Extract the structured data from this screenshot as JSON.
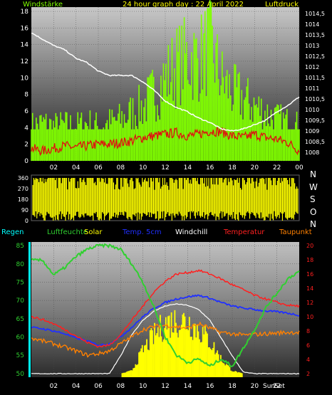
{
  "colors": {
    "wind": "#80ff00",
    "gust": "#7cd600",
    "pressure": "#ffffff",
    "winddir": "#ffff00",
    "regen": "#00ffff",
    "humidity": "#30d030",
    "solar": "#ffff00",
    "temp5cm": "#2030ff",
    "windchill": "#ffffff",
    "temperature": "#ff2020",
    "dewpoint": "#ff8000",
    "axis_text": "#ffffff",
    "red_axis": "#ff2020"
  },
  "header": {
    "left": "Windstärke",
    "center": "24 hour graph day : 22 April 2022",
    "right": "Luftdruck"
  },
  "dir_labels": [
    "N",
    "W",
    "S",
    "O",
    "N"
  ],
  "legend": {
    "regen": "Regen",
    "luftfeuchte": "Luftfeuchte",
    "solar": "Solar",
    "temp5cm": "Temp. 5cm",
    "windchill": "Windchill",
    "temperatur": "Temperatur",
    "taupunkt": "Taupunkt"
  },
  "sun_labels": {
    "rise": "Sun",
    "set": "Set"
  },
  "chart_data": [
    {
      "type": "line",
      "title": "24 hour graph day : 22 April 2022",
      "x_ticks": [
        "02",
        "04",
        "06",
        "08",
        "10",
        "12",
        "14",
        "16",
        "18",
        "20",
        "22",
        "00"
      ],
      "y_left_ticks": [
        "0",
        "2",
        "4",
        "6",
        "8",
        "10",
        "12",
        "14",
        "16",
        "18"
      ],
      "y_right_ticks": [
        "1008",
        "1008,5",
        "1009",
        "1009,5",
        "1010",
        "1010,5",
        "1011",
        "1011,5",
        "1012",
        "1012,5",
        "1013",
        "1013,5",
        "1014",
        "1014,5"
      ],
      "ylim_left": [
        0,
        18
      ],
      "ylim_right": [
        1007.6,
        1014.8
      ],
      "series": [
        {
          "name": "Windstärke",
          "axis": "left",
          "x": [
            0,
            1,
            2,
            3,
            4,
            5,
            6,
            7,
            8,
            9,
            10,
            11,
            12,
            13,
            14,
            15,
            16,
            17,
            18,
            19,
            20,
            21,
            22,
            23,
            24
          ],
          "values": [
            5,
            5.5,
            5,
            5.2,
            5,
            5.5,
            5,
            5.5,
            6,
            7,
            8,
            10,
            12,
            14,
            15,
            15,
            17,
            12,
            10,
            9,
            8,
            7,
            6,
            5.5,
            5
          ]
        },
        {
          "name": "Windstärke (Mittel)",
          "axis": "left",
          "x": [
            0,
            1,
            2,
            3,
            4,
            5,
            6,
            7,
            8,
            9,
            10,
            11,
            12,
            13,
            14,
            15,
            16,
            17,
            18,
            19,
            20,
            21,
            22,
            23,
            24
          ],
          "values": [
            1.5,
            1.2,
            1.5,
            1.8,
            1.6,
            1.8,
            2.0,
            2.0,
            2.2,
            2.4,
            2.8,
            3.0,
            3.2,
            3.4,
            3.0,
            3.2,
            3.6,
            3.5,
            3.0,
            2.8,
            3.2,
            2.8,
            2.6,
            2.2,
            1.2
          ]
        },
        {
          "name": "Luftdruck",
          "axis": "right",
          "x": [
            0,
            1,
            2,
            3,
            4,
            5,
            6,
            7,
            8,
            9,
            10,
            11,
            12,
            13,
            14,
            15,
            16,
            17,
            18,
            19,
            20,
            21,
            22,
            23,
            24
          ],
          "values": [
            1013.6,
            1013.3,
            1013.0,
            1012.8,
            1012.4,
            1012.2,
            1011.8,
            1011.6,
            1011.6,
            1011.6,
            1011.3,
            1010.9,
            1010.4,
            1010.1,
            1009.9,
            1009.6,
            1009.4,
            1009.1,
            1009.0,
            1009.1,
            1009.3,
            1009.5,
            1009.9,
            1010.2,
            1010.6
          ]
        }
      ]
    },
    {
      "type": "bar",
      "title": "",
      "y_ticks": [
        "0",
        "90",
        "180",
        "270",
        "360"
      ],
      "ylim": [
        0,
        360
      ],
      "series": [
        {
          "name": "Windrichtung",
          "note": "dense vertical bars across 0-360 degrees throughout the day"
        }
      ]
    },
    {
      "type": "line",
      "title": "",
      "x_ticks": [
        "02",
        "04",
        "06",
        "08",
        "10",
        "12",
        "14",
        "16",
        "18",
        "20",
        "22"
      ],
      "y_left_ticks": [
        "50",
        "55",
        "60",
        "65",
        "70",
        "75",
        "80",
        "85"
      ],
      "y_right_ticks": [
        "2",
        "4",
        "6",
        "8",
        "10",
        "12",
        "14",
        "16",
        "18",
        "20"
      ],
      "ylim_left": [
        49,
        86
      ],
      "ylim_right": [
        1.5,
        20.5
      ],
      "series": [
        {
          "name": "Luftfeuchte",
          "axis": "left",
          "x": [
            0,
            1,
            2,
            3,
            4,
            5,
            6,
            7,
            8,
            9,
            10,
            11,
            12,
            13,
            14,
            15,
            16,
            17,
            18,
            19,
            20,
            21,
            22,
            23,
            24
          ],
          "values": [
            81,
            81,
            77,
            79,
            82,
            84,
            85,
            85,
            84,
            80,
            75,
            68,
            60,
            55,
            53,
            54,
            52,
            54,
            52,
            57,
            62,
            68,
            72,
            76,
            78
          ]
        },
        {
          "name": "Temperatur",
          "axis": "right",
          "x": [
            0,
            1,
            2,
            3,
            4,
            5,
            6,
            7,
            8,
            9,
            10,
            11,
            12,
            13,
            14,
            15,
            16,
            17,
            18,
            19,
            20,
            21,
            22,
            23,
            24
          ],
          "values": [
            10,
            9.6,
            9.0,
            8.2,
            7.3,
            6.4,
            5.8,
            6.0,
            7.5,
            9.5,
            11.5,
            13.5,
            15.0,
            16.0,
            16.2,
            16.5,
            16.0,
            15.3,
            14.5,
            13.8,
            13.0,
            12.5,
            12.0,
            11.6,
            11.5
          ]
        },
        {
          "name": "Temp. 5cm",
          "axis": "right",
          "x": [
            0,
            1,
            2,
            3,
            4,
            5,
            6,
            7,
            8,
            9,
            10,
            11,
            12,
            13,
            14,
            15,
            16,
            17,
            18,
            19,
            20,
            21,
            22,
            23,
            24
          ],
          "values": [
            8.5,
            8.3,
            8.0,
            7.6,
            7.0,
            6.6,
            6.0,
            6.2,
            7.2,
            8.5,
            10.0,
            11.2,
            12.0,
            12.5,
            12.8,
            13.0,
            12.6,
            12.0,
            11.5,
            11.2,
            11.0,
            10.8,
            10.7,
            10.5,
            10.2
          ]
        },
        {
          "name": "Taupunkt",
          "axis": "right",
          "x": [
            0,
            1,
            2,
            3,
            4,
            5,
            6,
            7,
            8,
            9,
            10,
            11,
            12,
            13,
            14,
            15,
            16,
            17,
            18,
            19,
            20,
            21,
            22,
            23,
            24
          ],
          "values": [
            7.0,
            6.6,
            6.2,
            5.7,
            5.2,
            4.6,
            4.8,
            5.2,
            6.2,
            7.2,
            8.2,
            8.6,
            8.8,
            8.6,
            8.4,
            9.0,
            8.4,
            7.8,
            7.6,
            7.4,
            7.5,
            7.6,
            7.7,
            7.8,
            7.8
          ]
        },
        {
          "name": "Windchill",
          "axis": "right",
          "x": [
            0,
            1,
            2,
            3,
            4,
            5,
            6,
            7,
            8,
            9,
            10,
            11,
            12,
            13,
            14,
            15,
            16,
            17,
            18,
            19,
            20,
            21,
            22,
            23,
            24
          ],
          "values": [
            2,
            2,
            2,
            2,
            2,
            2,
            2,
            2,
            4.5,
            7.5,
            9.5,
            10.8,
            11.5,
            11.8,
            11.6,
            11.0,
            9.5,
            7.0,
            4.5,
            2.2,
            2,
            2,
            2,
            2,
            2
          ]
        },
        {
          "name": "Solar",
          "axis": "right",
          "x": [
            0,
            1,
            2,
            3,
            4,
            5,
            6,
            7,
            8,
            9,
            10,
            11,
            12,
            13,
            14,
            15,
            16,
            17,
            18,
            19,
            20,
            21,
            22,
            23,
            24
          ],
          "values": [
            2,
            2,
            2,
            2,
            2,
            2,
            2,
            2,
            2,
            2.5,
            6,
            8.5,
            10.5,
            11.0,
            11.0,
            9.5,
            7.5,
            4.5,
            2.5,
            2,
            2,
            2,
            2,
            2,
            2
          ]
        }
      ]
    }
  ]
}
